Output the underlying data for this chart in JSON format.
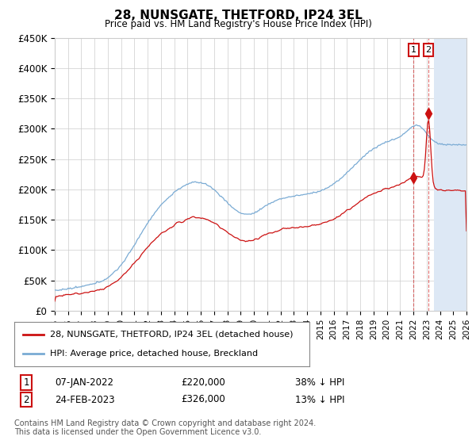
{
  "title": "28, NUNSGATE, THETFORD, IP24 3EL",
  "subtitle": "Price paid vs. HM Land Registry's House Price Index (HPI)",
  "ylim": [
    0,
    450000
  ],
  "yticks": [
    0,
    50000,
    100000,
    150000,
    200000,
    250000,
    300000,
    350000,
    400000,
    450000
  ],
  "ytick_labels": [
    "£0",
    "£50K",
    "£100K",
    "£150K",
    "£200K",
    "£250K",
    "£300K",
    "£350K",
    "£400K",
    "£450K"
  ],
  "hpi_color": "#7aabd4",
  "price_color": "#cc1111",
  "sale1_t": 2022.019,
  "sale1_price": 220000,
  "sale1_date": "07-JAN-2022",
  "sale1_label": "38% ↓ HPI",
  "sale2_t": 2023.14,
  "sale2_price": 326000,
  "sale2_date": "24-FEB-2023",
  "sale2_label": "13% ↓ HPI",
  "legend_line1": "28, NUNSGATE, THETFORD, IP24 3EL (detached house)",
  "legend_line2": "HPI: Average price, detached house, Breckland",
  "footer1": "Contains HM Land Registry data © Crown copyright and database right 2024.",
  "footer2": "This data is licensed under the Open Government Licence v3.0.",
  "bg_color": "#ffffff",
  "grid_color": "#cccccc",
  "future_color": "#dde8f5",
  "future_start": 2023.5,
  "xlim_start": 1995,
  "xlim_end": 2026
}
